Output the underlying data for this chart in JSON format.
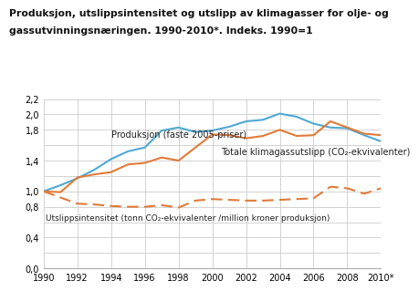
{
  "title_line1": "Produksjon, utslippsintensitet og utslipp av klimagasser for olje- og",
  "title_line2": "gassutvinningsnæringen. 1990-2010*. Indeks. 1990=1",
  "years": [
    1990,
    1991,
    1992,
    1993,
    1994,
    1995,
    1996,
    1997,
    1998,
    1999,
    2000,
    2001,
    2002,
    2003,
    2004,
    2005,
    2006,
    2007,
    2008,
    2009,
    2010
  ],
  "produksjon": [
    1.0,
    1.08,
    1.17,
    1.28,
    1.42,
    1.52,
    1.57,
    1.79,
    1.83,
    1.77,
    1.79,
    1.84,
    1.91,
    1.93,
    2.01,
    1.97,
    1.88,
    1.83,
    1.82,
    1.73,
    1.65
  ],
  "totale_utslipp": [
    1.0,
    0.99,
    1.18,
    1.22,
    1.25,
    1.35,
    1.37,
    1.44,
    1.4,
    1.57,
    1.74,
    1.73,
    1.69,
    1.72,
    1.8,
    1.72,
    1.73,
    1.91,
    1.83,
    1.75,
    1.73
  ],
  "utslippsintensitet": [
    1.0,
    0.92,
    0.84,
    0.83,
    0.81,
    0.8,
    0.8,
    0.82,
    0.79,
    0.88,
    0.9,
    0.89,
    0.88,
    0.88,
    0.89,
    0.9,
    0.91,
    1.06,
    1.04,
    0.97,
    1.04
  ],
  "color_blue": "#4fa8d5",
  "color_orange": "#e07b39",
  "ylim": [
    0.0,
    2.2
  ],
  "yticks": [
    0.0,
    0.2,
    0.4,
    0.6,
    0.8,
    1.0,
    1.2,
    1.4,
    1.6,
    1.8,
    2.0,
    2.2
  ],
  "ytick_labels": [
    "0,0",
    "",
    "0,4",
    "",
    "0,8",
    "1,0",
    "",
    "1,4",
    "",
    "1,8",
    "2,0",
    "2,2"
  ],
  "xtick_labels": [
    "1990",
    "1992",
    "1994",
    "1996",
    "1998",
    "2000",
    "2002",
    "2004",
    "2006",
    "2008",
    "2010*"
  ],
  "label_produksjon": "Produksjon (faste 2005-priser)",
  "label_utslipp": "Totale klimagassutslipp (CO₂-ekvivalenter)",
  "label_intensitet": "Utslippsintensitet (tonn CO₂-ekvivalenter /million kroner produksjon)",
  "bg_color": "#ffffff",
  "grid_color": "#cccccc"
}
